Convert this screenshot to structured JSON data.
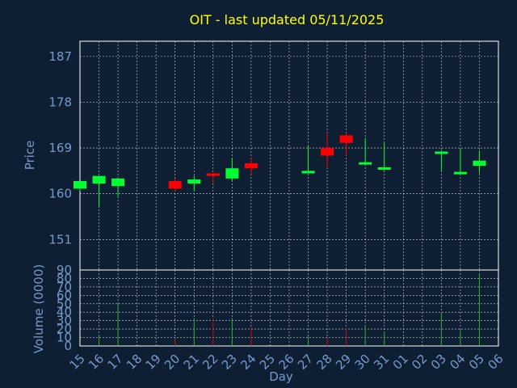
{
  "chart_data": {
    "type": "candlestick",
    "title": "OIT - last updated 05/11/2025",
    "xlabel": "Day",
    "price_ylabel": "Price",
    "volume_ylabel": "Volume (0000)",
    "price_ylim": [
      145,
      190
    ],
    "price_ticks": [
      151,
      160,
      169,
      178,
      187
    ],
    "volume_ylim": [
      0,
      90
    ],
    "volume_ticks": [
      0,
      10,
      20,
      30,
      40,
      50,
      60,
      70,
      80,
      90
    ],
    "grid": true,
    "x_labels": [
      "15",
      "16",
      "17",
      "18",
      "19",
      "20",
      "21",
      "22",
      "23",
      "24",
      "25",
      "26",
      "27",
      "28",
      "29",
      "30",
      "31",
      "01",
      "02",
      "03",
      "04",
      "05",
      "06"
    ],
    "candles": [
      {
        "day": "15",
        "open": 161.0,
        "high": 162.5,
        "low": 160.5,
        "close": 162.5,
        "volume": 0
      },
      {
        "day": "16",
        "open": 162.0,
        "high": 163.5,
        "low": 157.5,
        "close": 163.5,
        "volume": 13
      },
      {
        "day": "17",
        "open": 161.5,
        "high": 163.0,
        "low": 159.5,
        "close": 163.0,
        "volume": 50
      },
      {
        "day": "20",
        "open": 162.5,
        "high": 163.0,
        "low": 160.5,
        "close": 161.0,
        "volume": 9
      },
      {
        "day": "21",
        "open": 162.0,
        "high": 163.5,
        "low": 160.5,
        "close": 162.8,
        "volume": 33
      },
      {
        "day": "22",
        "open": 164.0,
        "high": 164.0,
        "low": 162.0,
        "close": 163.5,
        "volume": 33
      },
      {
        "day": "23",
        "open": 163.0,
        "high": 167.0,
        "low": 162.5,
        "close": 165.0,
        "volume": 33
      },
      {
        "day": "24",
        "open": 166.0,
        "high": 167.0,
        "low": 164.0,
        "close": 165.0,
        "volume": 22
      },
      {
        "day": "27",
        "open": 164.0,
        "high": 169.5,
        "low": 164.0,
        "close": 164.5,
        "volume": 11
      },
      {
        "day": "28",
        "open": 169.0,
        "high": 172.0,
        "low": 165.0,
        "close": 167.5,
        "volume": 9
      },
      {
        "day": "29",
        "open": 171.5,
        "high": 172.0,
        "low": 167.5,
        "close": 170.0,
        "volume": 21
      },
      {
        "day": "30",
        "open": 166.0,
        "high": 171.0,
        "low": 165.5,
        "close": 166.2,
        "volume": 25
      },
      {
        "day": "31",
        "open": 165.0,
        "high": 170.0,
        "low": 164.5,
        "close": 165.2,
        "volume": 17
      },
      {
        "day": "03",
        "open": 168.0,
        "high": 168.5,
        "low": 164.5,
        "close": 168.3,
        "volume": 39
      },
      {
        "day": "04",
        "open": 164.0,
        "high": 169.0,
        "low": 164.0,
        "close": 164.3,
        "volume": 19
      },
      {
        "day": "05",
        "open": 165.5,
        "high": 168.5,
        "low": 164.0,
        "close": 166.5,
        "volume": 85
      }
    ],
    "colors": {
      "background": "#0f1f33",
      "text": "#7799cc",
      "title": "#ffff00",
      "axis": "#ffffff",
      "grid": "#ffffff",
      "up": "#00ff33",
      "down": "#ff0000",
      "volume_up": "#33aa33",
      "volume_down": "#bb1111"
    }
  }
}
